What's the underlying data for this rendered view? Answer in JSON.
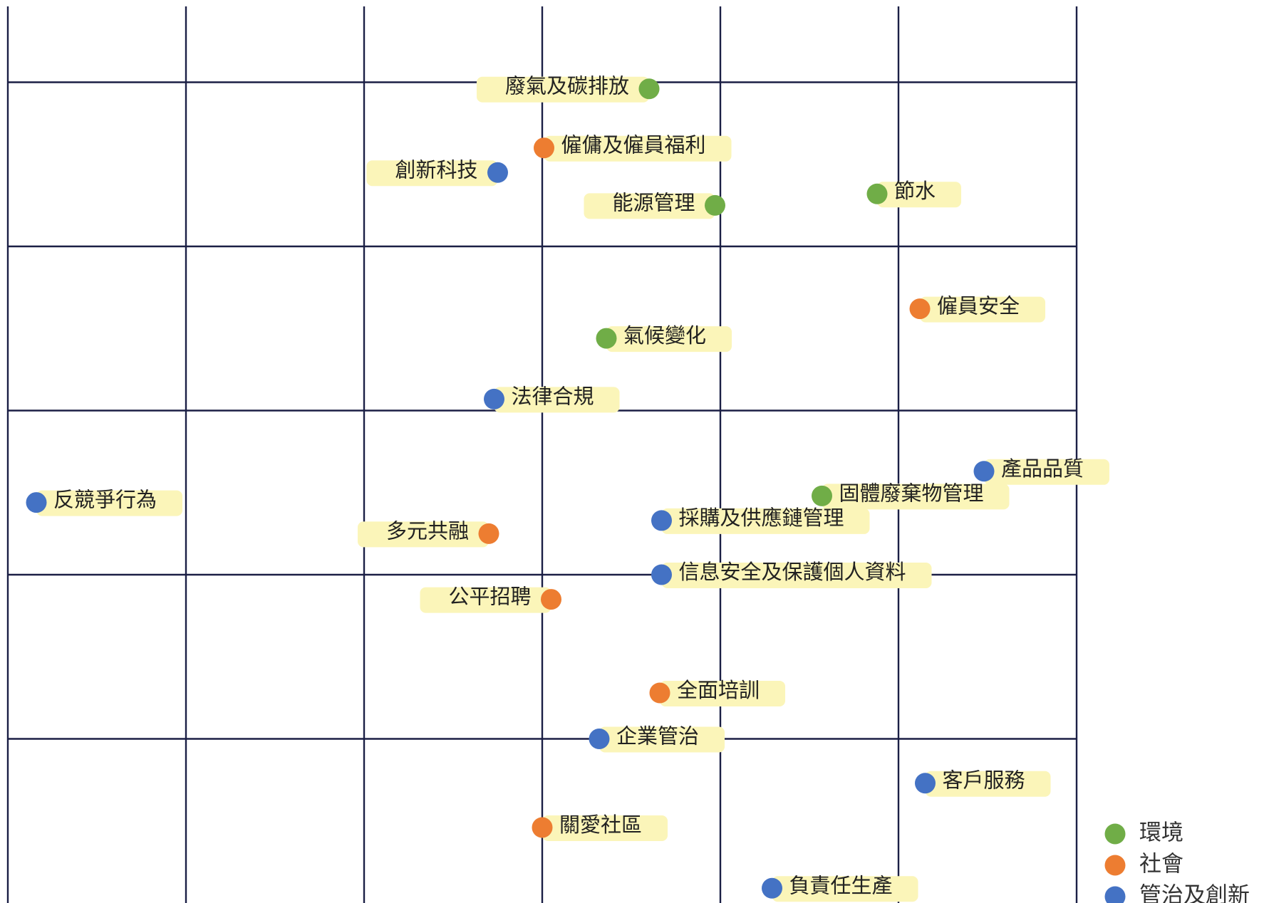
{
  "chart_data": {
    "type": "scatter",
    "xlim": [
      0,
      6
    ],
    "ylim": [
      0,
      5.5
    ],
    "xticks": [
      0,
      1,
      2,
      3,
      4,
      5,
      6
    ],
    "yticks": [
      1,
      2,
      3,
      4,
      5
    ],
    "grid": true,
    "legend": "bottom-right",
    "series": [
      {
        "name": "環境",
        "color": "#70ad47",
        "labels": [
          "廢氣及碳排放",
          "能源管理",
          "節水",
          "氣候變化",
          "固體廢棄物管理"
        ],
        "x": [
          3.6,
          3.97,
          4.88,
          3.36,
          4.57
        ],
        "values": [
          4.96,
          4.25,
          4.32,
          3.44,
          2.48
        ]
      },
      {
        "name": "社會",
        "color": "#ed7d31",
        "labels": [
          "僱傭及僱員福利",
          "僱員安全",
          "多元共融",
          "公平招聘",
          "全面培訓",
          "關愛社區"
        ],
        "x": [
          3.01,
          5.12,
          2.7,
          3.05,
          3.66,
          3.0
        ],
        "values": [
          4.6,
          3.62,
          2.25,
          1.85,
          1.28,
          0.46
        ]
      },
      {
        "name": "管治及創新",
        "color": "#4472c4",
        "labels": [
          "創新科技",
          "法律合規",
          "反競爭行為",
          "產品品質",
          "採購及供應鏈管理",
          "信息安全及保護個人資料",
          "企業管治",
          "客戶服務",
          "負責任生產"
        ],
        "x": [
          2.75,
          2.73,
          0.16,
          5.48,
          3.67,
          3.67,
          3.32,
          5.15,
          4.29
        ],
        "values": [
          4.45,
          3.07,
          2.44,
          2.63,
          2.33,
          2.0,
          1.0,
          0.73,
          0.09
        ]
      }
    ]
  }
}
